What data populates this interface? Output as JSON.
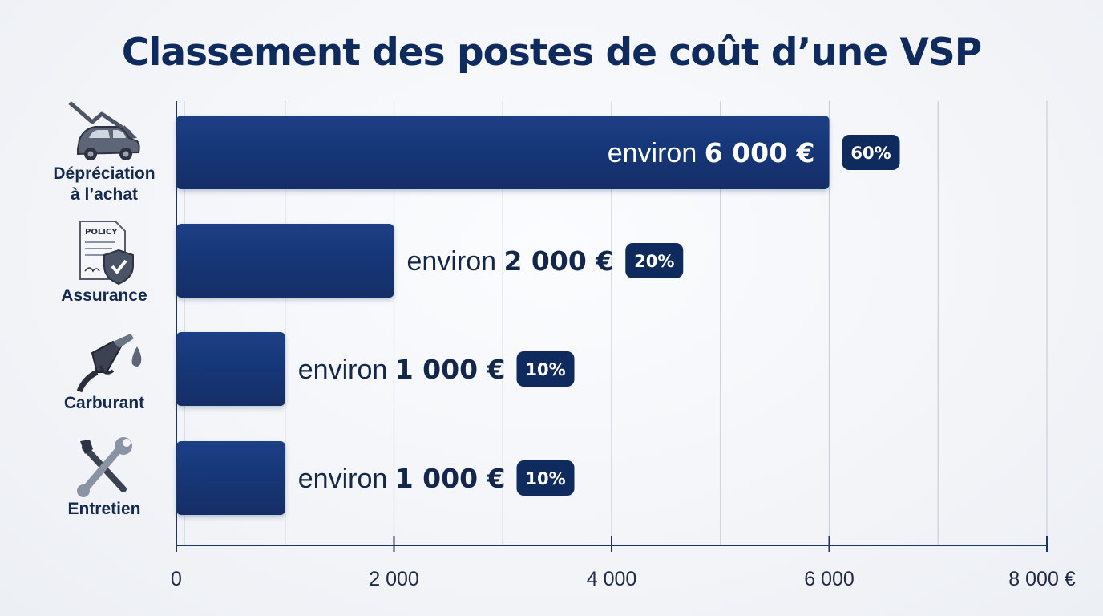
{
  "chart_data": {
    "type": "bar",
    "orientation": "horizontal",
    "title": "Classement des postes de coût d’une VSP",
    "categories": [
      "Dépréciation\nà l’achat",
      "Assurance",
      "Carburant",
      "Entretien"
    ],
    "values": [
      6000,
      2000,
      1000,
      1000
    ],
    "bar_labels": [
      {
        "prefix": "environ",
        "value": "6 000 €",
        "pct": "60%"
      },
      {
        "prefix": "environ",
        "value": "2 000 €",
        "pct": "20%"
      },
      {
        "prefix": "environ",
        "value": "1 000 €",
        "pct": "10%"
      },
      {
        "prefix": "environ",
        "value": "1 000 €",
        "pct": "10%"
      }
    ],
    "xlim": [
      0,
      8000
    ],
    "x_ticks": [
      0,
      2000,
      4000,
      6000,
      8000
    ],
    "x_tick_labels": [
      "0",
      "2 000",
      "4 000",
      "6 000",
      "8 000 €"
    ],
    "grid": true,
    "colors": {
      "bar": "#1a3a7e",
      "bar_dark": "#0f2a5c",
      "axis": "#1e3563",
      "grid": "#c9cfdb"
    },
    "icons": [
      "car-depreciation-icon",
      "insurance-policy-icon",
      "fuel-nozzle-icon",
      "tools-icon"
    ]
  }
}
